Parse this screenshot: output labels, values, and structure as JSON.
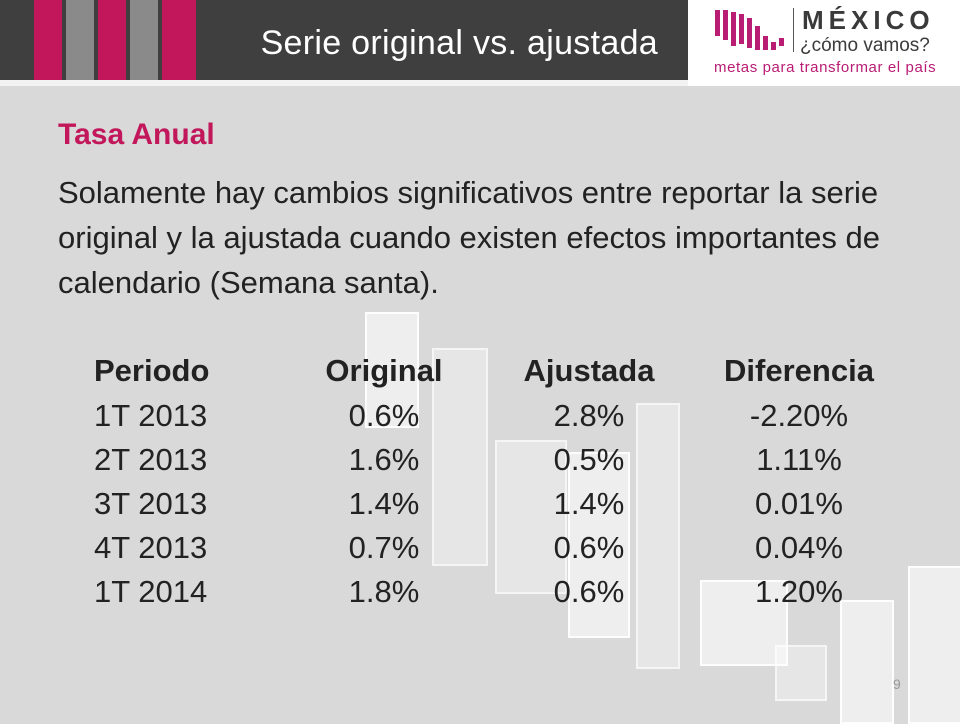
{
  "header": {
    "title": "Serie original vs. ajustada",
    "colors": {
      "background": "#3f3f3f",
      "accent_pink": "#c2185b",
      "accent_gray": "#8a8a8a"
    }
  },
  "logo": {
    "word": "MÉXICO",
    "sub": "¿cómo vamos?",
    "tagline": "metas para transformar el país",
    "mark_icon": "bar-chart-icon",
    "color": "#b91d73"
  },
  "content": {
    "subtitle": "Tasa Anual",
    "paragraph": "Solamente hay cambios significativos entre reportar la serie original y la ajustada cuando existen efectos importantes de calendario (Semana santa)."
  },
  "table": {
    "headers": [
      "Periodo",
      "Original",
      "Ajustada",
      "Diferencia"
    ],
    "rows": [
      [
        "1T 2013",
        "0.6%",
        "2.8%",
        "-2.20%"
      ],
      [
        "2T 2013",
        "1.6%",
        "0.5%",
        "1.11%"
      ],
      [
        "3T 2013",
        "1.4%",
        "1.4%",
        "0.01%"
      ],
      [
        "4T 2013",
        "0.7%",
        "0.6%",
        "0.04%"
      ],
      [
        "1T 2014",
        "1.8%",
        "0.6%",
        "1.20%"
      ]
    ]
  },
  "footer": {
    "page_number": "9"
  }
}
